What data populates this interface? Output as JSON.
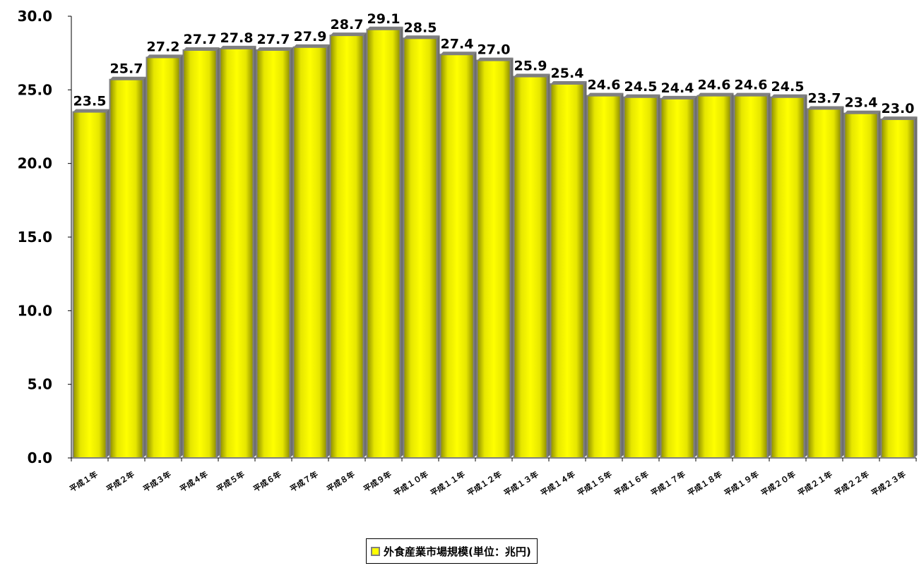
{
  "chart_data": {
    "type": "bar",
    "categories": [
      "平成１年",
      "平成２年",
      "平成３年",
      "平成４年",
      "平成５年",
      "平成６年",
      "平成７年",
      "平成８年",
      "平成９年",
      "平成１０年",
      "平成１１年",
      "平成１２年",
      "平成１３年",
      "平成１４年",
      "平成１５年",
      "平成１６年",
      "平成１７年",
      "平成１８年",
      "平成１９年",
      "平成２０年",
      "平成２１年",
      "平成２２年",
      "平成２３年"
    ],
    "series": [
      {
        "name": "外食産業市場規模(単位：兆円)",
        "values": [
          23.5,
          25.7,
          27.2,
          27.7,
          27.8,
          27.7,
          27.9,
          28.7,
          29.1,
          28.5,
          27.4,
          27.0,
          25.9,
          25.4,
          24.6,
          24.5,
          24.4,
          24.6,
          24.6,
          24.5,
          23.7,
          23.4,
          23.0
        ]
      }
    ],
    "y_ticks": [
      "0.0",
      "5.0",
      "10.0",
      "15.0",
      "20.0",
      "25.0",
      "30.0"
    ],
    "ylim": [
      0,
      30
    ],
    "data_labels": [
      "23.5",
      "25.7",
      "27.2",
      "27.7",
      "27.8",
      "27.7",
      "27.9",
      "28.7",
      "29.1",
      "28.5",
      "27.4",
      "27.0",
      "25.9",
      "25.4",
      "24.6",
      "24.5",
      "24.4",
      "24.6",
      "24.6",
      "24.5",
      "23.7",
      "23.4",
      "23.0"
    ],
    "grid": false,
    "legend_position": "bottom",
    "colors": {
      "bar_fill": "#ffff00",
      "bar_shade": "#8c8c00",
      "bar_border": "#808080"
    }
  }
}
